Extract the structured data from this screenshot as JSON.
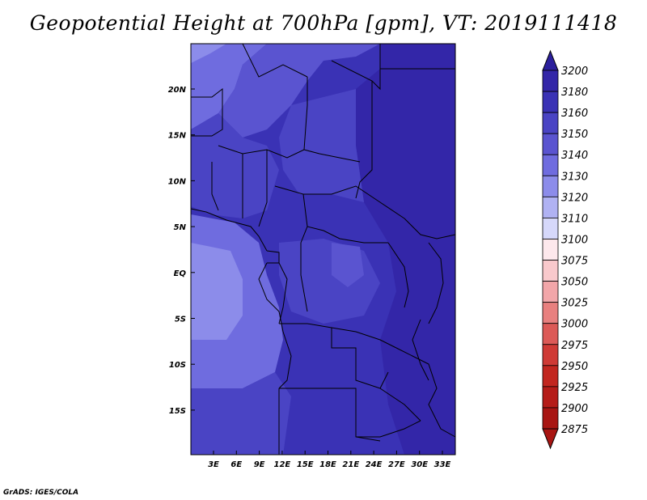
{
  "title": "Geopotential Height at 700hPa [gpm], VT: 2019111418",
  "footer": "GrADS: IGES/COLA",
  "lat_labels": [
    "20N",
    "15N",
    "10N",
    "5N",
    "EQ",
    "5S",
    "10S",
    "15S"
  ],
  "lon_labels": [
    "3E",
    "6E",
    "9E",
    "12E",
    "15E",
    "18E",
    "21E",
    "24E",
    "27E",
    "30E",
    "33E"
  ],
  "colorbar": {
    "levels": [
      "3200",
      "3180",
      "3160",
      "3150",
      "3140",
      "3130",
      "3120",
      "3110",
      "3100",
      "3075",
      "3050",
      "3025",
      "3000",
      "2975",
      "2950",
      "2925",
      "2900",
      "2875"
    ],
    "colors": [
      "#2b1f9c",
      "#3326a8",
      "#3a32b5",
      "#4a44c4",
      "#5a54d0",
      "#6f6cdf",
      "#8c8cea",
      "#b0b2f3",
      "#d6d8fa",
      "#fde8ec",
      "#f9c9cc",
      "#f2a6a9",
      "#e8807f",
      "#dc5a57",
      "#cf3a35",
      "#c2261f",
      "#b51c18",
      "#a81512"
    ]
  },
  "map_colors": {
    "deep": "#3a32b5",
    "mid": "#4a44c4",
    "light": "#5a54d0",
    "lighter": "#6f6cdf",
    "lightest": "#8c8cea"
  }
}
